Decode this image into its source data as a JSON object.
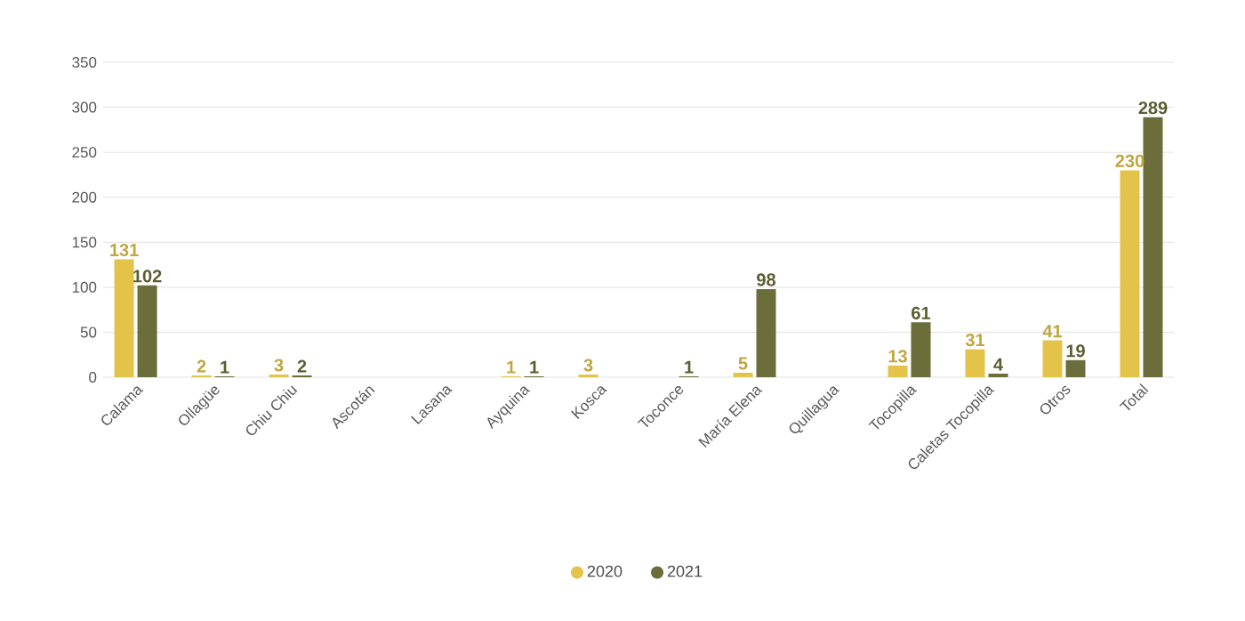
{
  "chart_data": {
    "type": "bar",
    "categories": [
      "Calama",
      "Ollagüe",
      "Chiu Chiu",
      "Ascotán",
      "Lasana",
      "Ayquina",
      "Kosca",
      "Toconce",
      "María Elena",
      "Quillagua",
      "Tocopilla",
      "Caletas Tocopilla",
      "Otros",
      "Total"
    ],
    "series": [
      {
        "name": "2020",
        "color": "#e3c34a",
        "values": [
          131,
          2,
          3,
          null,
          null,
          1,
          3,
          null,
          5,
          null,
          13,
          31,
          41,
          230
        ]
      },
      {
        "name": "2021",
        "color": "#6b6d3a",
        "values": [
          102,
          1,
          2,
          null,
          null,
          1,
          null,
          1,
          98,
          null,
          61,
          4,
          19,
          289
        ]
      }
    ],
    "ylim": [
      0,
      350
    ],
    "yticks": [
      0,
      50,
      100,
      150,
      200,
      250,
      300,
      350
    ],
    "grid": "y",
    "legend": "bottom",
    "data_labels": true
  }
}
